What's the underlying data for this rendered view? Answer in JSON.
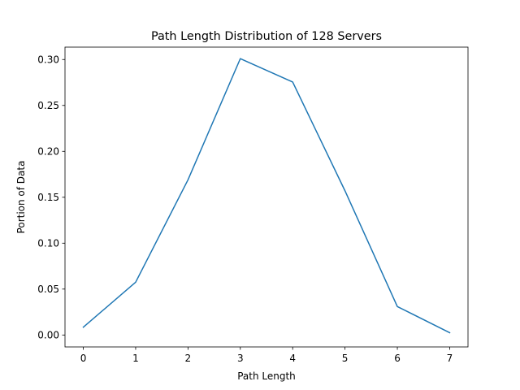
{
  "chart_data": {
    "type": "line",
    "title": "Path Length Distribution of 128 Servers",
    "xlabel": "Path Length",
    "ylabel": "Portion of Data",
    "x": [
      0,
      1,
      2,
      3,
      4,
      5,
      6,
      7
    ],
    "series": [
      {
        "values": [
          0.0085,
          0.0575,
          0.169,
          0.301,
          0.2755,
          0.157,
          0.031,
          0.0025
        ],
        "color": "#1f77b4"
      }
    ],
    "xlim": [
      -0.35,
      7.35
    ],
    "ylim": [
      -0.013,
      0.3135
    ],
    "xticks": [
      0,
      1,
      2,
      3,
      4,
      5,
      6,
      7
    ],
    "xtick_labels": [
      "0",
      "1",
      "2",
      "3",
      "4",
      "5",
      "6",
      "7"
    ],
    "yticks": [
      0.0,
      0.05,
      0.1,
      0.15,
      0.2,
      0.25,
      0.3
    ],
    "ytick_labels": [
      "0.00",
      "0.05",
      "0.10",
      "0.15",
      "0.20",
      "0.25",
      "0.30"
    ],
    "grid": false,
    "legend": "none"
  }
}
